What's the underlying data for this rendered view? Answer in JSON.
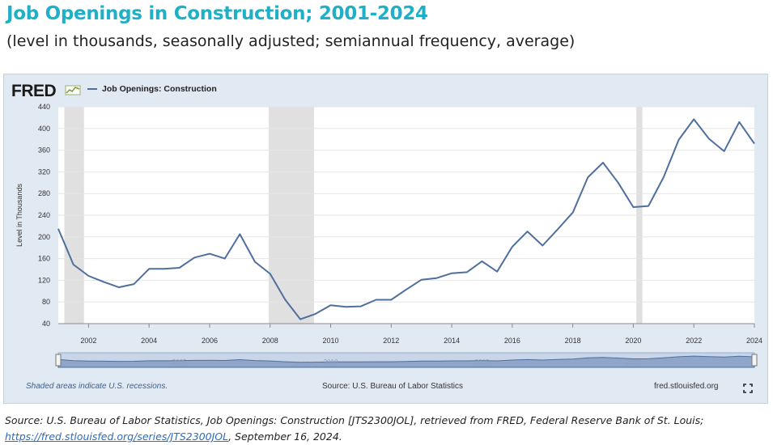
{
  "header": {
    "title": "Job Openings in Construction; 2001-2024",
    "subtitle": "(level in thousands, seasonally adjusted; semiannual frequency, average)"
  },
  "graph": {
    "logo_text": "FRED",
    "recession_note": "Shaded areas indicate U.S. recessions.",
    "source_note": "Source: U.S. Bureau of Labor Statistics",
    "site": "fred.stlouisfed.org",
    "navigator_labels": [
      "2005",
      "2010",
      "2015",
      "2020"
    ]
  },
  "footer": {
    "source_text": "Source: U.S. Bureau of Labor Statistics, Job Openings: Construction [JTS2300JOL], retrieved from FRED, Federal Reserve Bank of St. Louis;",
    "link_text": "https://fred.stlouisfed.org/series/JTS2300JOL",
    "date_text": ", September 16, 2024."
  },
  "chart_data": {
    "type": "line",
    "title": "Job Openings in Construction; 2001-2024",
    "ylabel": "Level in Thousands",
    "xlim": [
      2001,
      2024
    ],
    "ylim": [
      40,
      440
    ],
    "yticks": [
      40,
      80,
      120,
      160,
      200,
      240,
      280,
      320,
      360,
      400,
      440
    ],
    "xticks": [
      2002,
      2004,
      2006,
      2008,
      2010,
      2012,
      2014,
      2016,
      2018,
      2020,
      2022,
      2024
    ],
    "grid": "horizontal",
    "legend": "top-left",
    "series": [
      {
        "name": "Job Openings: Construction",
        "color": "#4f6f9c",
        "x": [
          2001.0,
          2001.5,
          2002.0,
          2002.5,
          2003.0,
          2003.5,
          2004.0,
          2004.5,
          2005.0,
          2005.5,
          2006.0,
          2006.5,
          2007.0,
          2007.5,
          2008.0,
          2008.5,
          2009.0,
          2009.5,
          2010.0,
          2010.5,
          2011.0,
          2011.5,
          2012.0,
          2012.5,
          2013.0,
          2013.5,
          2014.0,
          2014.5,
          2015.0,
          2015.5,
          2016.0,
          2016.5,
          2017.0,
          2017.5,
          2018.0,
          2018.5,
          2019.0,
          2019.5,
          2020.0,
          2020.5,
          2021.0,
          2021.5,
          2022.0,
          2022.5,
          2023.0,
          2023.5,
          2024.0
        ],
        "y": [
          215,
          149,
          128,
          117,
          107,
          113,
          141,
          141,
          143,
          162,
          169,
          160,
          205,
          154,
          132,
          84,
          48,
          58,
          74,
          71,
          72,
          84,
          84,
          103,
          121,
          124,
          133,
          135,
          155,
          136,
          182,
          210,
          184,
          214,
          245,
          310,
          337,
          300,
          255,
          257,
          310,
          379,
          417,
          381,
          358,
          412,
          372
        ]
      }
    ],
    "recessions": [
      [
        2001.2,
        2001.85
      ],
      [
        2007.95,
        2009.45
      ],
      [
        2020.1,
        2020.3
      ]
    ]
  }
}
